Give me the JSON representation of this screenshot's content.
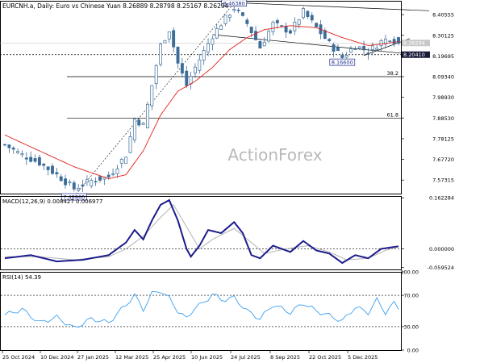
{
  "chart_data": {
    "type": "candlestick",
    "symbol_header": "EURCNH.a, Daily:  Euro vs Chinese Yuan  8.26889  8.28798  8.25167  8.26294",
    "watermark": "ActionForex",
    "x_dates": [
      "25 Oct 2024",
      "10 Dec 2024",
      "27 Jan 2025",
      "12 Mar 2025",
      "25 Apr 2025",
      "10 Jun 2025",
      "24 Jul 2025",
      "8 Sep 2025",
      "22 Oct 2025",
      "5 Dec 2025"
    ],
    "price_axis": {
      "ylim": [
        7.505,
        8.475
      ],
      "ticks": [
        "8.40555",
        "8.30125",
        "8.19695",
        "8.09340",
        "7.98930",
        "7.88530",
        "7.78125",
        "7.67720",
        "7.57315"
      ],
      "current_price": "8.26294",
      "marker_price": "8.20410",
      "fib_levels": [
        {
          "label": "38.2",
          "value": 8.0934
        },
        {
          "label": "61.8",
          "value": 7.8853
        }
      ],
      "annotations": [
        {
          "label": "8.46380",
          "value": 8.4638,
          "x_index": 53
        },
        {
          "label": "8.16600",
          "value": 8.166,
          "x_index": 78
        },
        {
          "label": "7.48860",
          "value": 7.4886,
          "x_index": 16
        }
      ]
    },
    "price_anchors": [
      {
        "i": 0,
        "v": 7.75
      },
      {
        "i": 4,
        "v": 7.7
      },
      {
        "i": 8,
        "v": 7.66
      },
      {
        "i": 12,
        "v": 7.6
      },
      {
        "i": 16,
        "v": 7.53
      },
      {
        "i": 20,
        "v": 7.57
      },
      {
        "i": 24,
        "v": 7.59
      },
      {
        "i": 28,
        "v": 7.7
      },
      {
        "i": 30,
        "v": 7.88
      },
      {
        "i": 32,
        "v": 7.85
      },
      {
        "i": 34,
        "v": 8.05
      },
      {
        "i": 36,
        "v": 8.25
      },
      {
        "i": 38,
        "v": 8.33
      },
      {
        "i": 40,
        "v": 8.16
      },
      {
        "i": 42,
        "v": 8.05
      },
      {
        "i": 44,
        "v": 8.14
      },
      {
        "i": 46,
        "v": 8.22
      },
      {
        "i": 48,
        "v": 8.3
      },
      {
        "i": 50,
        "v": 8.36
      },
      {
        "i": 53,
        "v": 8.44
      },
      {
        "i": 56,
        "v": 8.36
      },
      {
        "i": 59,
        "v": 8.24
      },
      {
        "i": 62,
        "v": 8.36
      },
      {
        "i": 66,
        "v": 8.32
      },
      {
        "i": 69,
        "v": 8.42
      },
      {
        "i": 72,
        "v": 8.34
      },
      {
        "i": 75,
        "v": 8.26
      },
      {
        "i": 78,
        "v": 8.19
      },
      {
        "i": 81,
        "v": 8.25
      },
      {
        "i": 84,
        "v": 8.22
      },
      {
        "i": 87,
        "v": 8.27
      },
      {
        "i": 89,
        "v": 8.29
      },
      {
        "i": 91,
        "v": 8.26
      }
    ],
    "ma_anchors": [
      {
        "i": 0,
        "v": 7.8
      },
      {
        "i": 8,
        "v": 7.72
      },
      {
        "i": 16,
        "v": 7.64
      },
      {
        "i": 24,
        "v": 7.58
      },
      {
        "i": 28,
        "v": 7.6
      },
      {
        "i": 32,
        "v": 7.72
      },
      {
        "i": 36,
        "v": 7.9
      },
      {
        "i": 40,
        "v": 8.02
      },
      {
        "i": 44,
        "v": 8.07
      },
      {
        "i": 48,
        "v": 8.14
      },
      {
        "i": 52,
        "v": 8.23
      },
      {
        "i": 56,
        "v": 8.29
      },
      {
        "i": 60,
        "v": 8.33
      },
      {
        "i": 66,
        "v": 8.35
      },
      {
        "i": 72,
        "v": 8.34
      },
      {
        "i": 78,
        "v": 8.29
      },
      {
        "i": 84,
        "v": 8.25
      },
      {
        "i": 88,
        "v": 8.26
      },
      {
        "i": 91,
        "v": 8.27
      }
    ],
    "macd": {
      "title": "MACD(12,26,9) 0.008427 0.006977",
      "ylim": [
        -0.0655,
        0.168
      ],
      "ticks": [
        "0.162284",
        "0.000000",
        "-0.059524"
      ],
      "macd_anchors": [
        {
          "i": 0,
          "v": -0.03
        },
        {
          "i": 6,
          "v": -0.02
        },
        {
          "i": 12,
          "v": -0.04
        },
        {
          "i": 18,
          "v": -0.035
        },
        {
          "i": 24,
          "v": -0.02
        },
        {
          "i": 28,
          "v": 0.02
        },
        {
          "i": 30,
          "v": 0.06
        },
        {
          "i": 32,
          "v": 0.03
        },
        {
          "i": 34,
          "v": 0.09
        },
        {
          "i": 36,
          "v": 0.14
        },
        {
          "i": 38,
          "v": 0.155
        },
        {
          "i": 40,
          "v": 0.09
        },
        {
          "i": 42,
          "v": 0.0
        },
        {
          "i": 43,
          "v": -0.025
        },
        {
          "i": 45,
          "v": 0.01
        },
        {
          "i": 47,
          "v": 0.06
        },
        {
          "i": 50,
          "v": 0.05
        },
        {
          "i": 53,
          "v": 0.085
        },
        {
          "i": 55,
          "v": 0.05
        },
        {
          "i": 57,
          "v": -0.02
        },
        {
          "i": 59,
          "v": -0.03
        },
        {
          "i": 62,
          "v": 0.01
        },
        {
          "i": 66,
          "v": -0.01
        },
        {
          "i": 69,
          "v": 0.025
        },
        {
          "i": 72,
          "v": -0.005
        },
        {
          "i": 75,
          "v": -0.015
        },
        {
          "i": 78,
          "v": -0.045
        },
        {
          "i": 81,
          "v": -0.02
        },
        {
          "i": 84,
          "v": -0.03
        },
        {
          "i": 87,
          "v": 0.0
        },
        {
          "i": 91,
          "v": 0.008
        }
      ],
      "signal_anchors": [
        {
          "i": 0,
          "v": -0.025
        },
        {
          "i": 8,
          "v": -0.025
        },
        {
          "i": 16,
          "v": -0.035
        },
        {
          "i": 24,
          "v": -0.025
        },
        {
          "i": 28,
          "v": 0.0
        },
        {
          "i": 32,
          "v": 0.04
        },
        {
          "i": 36,
          "v": 0.1
        },
        {
          "i": 39,
          "v": 0.14
        },
        {
          "i": 42,
          "v": 0.07
        },
        {
          "i": 45,
          "v": 0.0
        },
        {
          "i": 48,
          "v": 0.03
        },
        {
          "i": 53,
          "v": 0.065
        },
        {
          "i": 57,
          "v": 0.02
        },
        {
          "i": 60,
          "v": -0.015
        },
        {
          "i": 65,
          "v": 0.0
        },
        {
          "i": 70,
          "v": 0.01
        },
        {
          "i": 75,
          "v": -0.01
        },
        {
          "i": 79,
          "v": -0.035
        },
        {
          "i": 84,
          "v": -0.03
        },
        {
          "i": 88,
          "v": -0.005
        },
        {
          "i": 91,
          "v": 0.007
        }
      ]
    },
    "rsi": {
      "title": "RSI(14) 54.39",
      "ylim": [
        0,
        100
      ],
      "ticks": [
        "100.00",
        "70.00",
        "30.00",
        "0.00"
      ],
      "levels": [
        70,
        30
      ],
      "anchors": [
        {
          "i": 0,
          "v": 45
        },
        {
          "i": 4,
          "v": 52
        },
        {
          "i": 8,
          "v": 35
        },
        {
          "i": 12,
          "v": 42
        },
        {
          "i": 16,
          "v": 28
        },
        {
          "i": 20,
          "v": 40
        },
        {
          "i": 24,
          "v": 35
        },
        {
          "i": 28,
          "v": 58
        },
        {
          "i": 30,
          "v": 70
        },
        {
          "i": 32,
          "v": 52
        },
        {
          "i": 34,
          "v": 72
        },
        {
          "i": 36,
          "v": 76
        },
        {
          "i": 38,
          "v": 66
        },
        {
          "i": 40,
          "v": 50
        },
        {
          "i": 42,
          "v": 40
        },
        {
          "i": 44,
          "v": 55
        },
        {
          "i": 46,
          "v": 60
        },
        {
          "i": 48,
          "v": 72
        },
        {
          "i": 50,
          "v": 64
        },
        {
          "i": 53,
          "v": 67
        },
        {
          "i": 56,
          "v": 50
        },
        {
          "i": 59,
          "v": 40
        },
        {
          "i": 62,
          "v": 58
        },
        {
          "i": 66,
          "v": 48
        },
        {
          "i": 69,
          "v": 60
        },
        {
          "i": 72,
          "v": 50
        },
        {
          "i": 75,
          "v": 44
        },
        {
          "i": 78,
          "v": 37
        },
        {
          "i": 81,
          "v": 55
        },
        {
          "i": 84,
          "v": 48
        },
        {
          "i": 86,
          "v": 64
        },
        {
          "i": 88,
          "v": 48
        },
        {
          "i": 90,
          "v": 60
        },
        {
          "i": 91,
          "v": 54
        }
      ]
    },
    "colors": {
      "up": "#3d6d99",
      "down": "#3d6d99",
      "ma": "#e0201c",
      "macd": "#1c1c8c",
      "signal": "#b4b4b4",
      "rsi": "#3ea0ef",
      "grid": "#000000",
      "watermark": "#b9b9b9"
    }
  }
}
